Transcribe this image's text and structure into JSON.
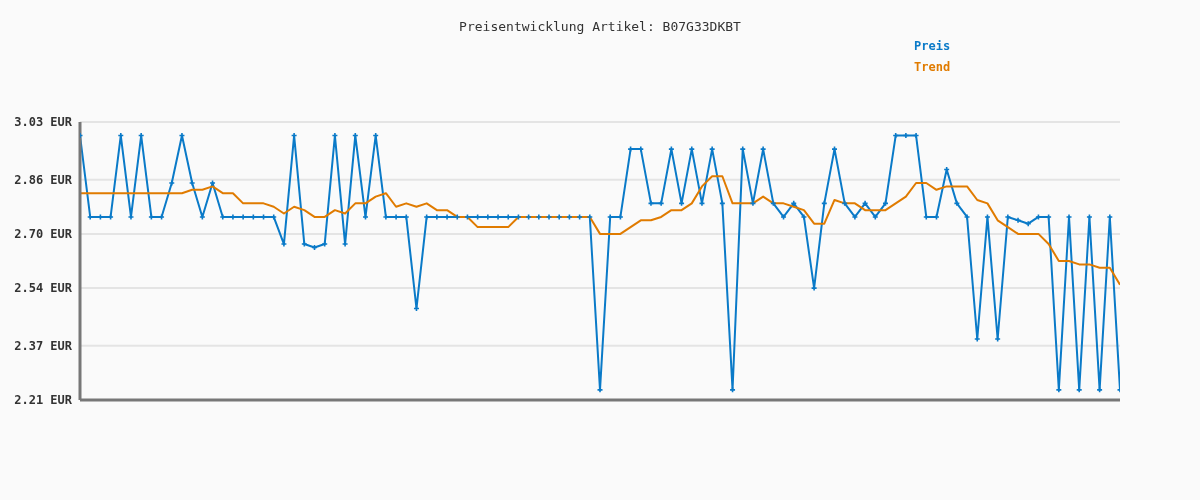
{
  "chart_data": {
    "type": "line",
    "title": "Preisentwicklung Artikel: B07G33DKBT",
    "categories": [
      null,
      null,
      null,
      null,
      null,
      null,
      null,
      null,
      null,
      null,
      null,
      null,
      null,
      null,
      null,
      null,
      null,
      null,
      null,
      null,
      null,
      null,
      null,
      null,
      null,
      null,
      null,
      null,
      null,
      null,
      null,
      null,
      null,
      null,
      null,
      null,
      null,
      null,
      null,
      null,
      null,
      null,
      null,
      null,
      null,
      null,
      null,
      null,
      null,
      null,
      null,
      null,
      null,
      null,
      null,
      null,
      null,
      null,
      null,
      null,
      null,
      null,
      null,
      null,
      null,
      null,
      null,
      null,
      null,
      null,
      null,
      null,
      null,
      null,
      null,
      null,
      null,
      null,
      null,
      null,
      null,
      null,
      null,
      null,
      null,
      null,
      null,
      null,
      null,
      null,
      null,
      null,
      null,
      null,
      null,
      null,
      null,
      null,
      null,
      null,
      null,
      null,
      null
    ],
    "series": [
      {
        "name": "Preis",
        "color": "#0a7ac8",
        "marker": "cross",
        "values": [
          2.99,
          2.75,
          2.75,
          2.75,
          2.99,
          2.75,
          2.99,
          2.75,
          2.75,
          2.85,
          2.99,
          2.85,
          2.75,
          2.85,
          2.75,
          2.75,
          2.75,
          2.75,
          2.75,
          2.75,
          2.67,
          2.99,
          2.67,
          2.66,
          2.67,
          2.99,
          2.67,
          2.99,
          2.75,
          2.99,
          2.75,
          2.75,
          2.75,
          2.48,
          2.75,
          2.75,
          2.75,
          2.75,
          2.75,
          2.75,
          2.75,
          2.75,
          2.75,
          2.75,
          2.75,
          2.75,
          2.75,
          2.75,
          2.75,
          2.75,
          2.75,
          2.24,
          2.75,
          2.75,
          2.95,
          2.95,
          2.79,
          2.79,
          2.95,
          2.79,
          2.95,
          2.79,
          2.95,
          2.79,
          2.24,
          2.95,
          2.79,
          2.95,
          2.79,
          2.75,
          2.79,
          2.75,
          2.54,
          2.79,
          2.95,
          2.79,
          2.75,
          2.79,
          2.75,
          2.79,
          2.99,
          2.99,
          2.99,
          2.75,
          2.75,
          2.89,
          2.79,
          2.75,
          2.39,
          2.75,
          2.39,
          2.75,
          2.74,
          2.73,
          2.75,
          2.75,
          2.24,
          2.75,
          2.24,
          2.75,
          2.24,
          2.75,
          2.24
        ]
      },
      {
        "name": "Trend",
        "color": "#e07b00",
        "marker": "none",
        "values": [
          2.82,
          2.82,
          2.82,
          2.82,
          2.82,
          2.82,
          2.82,
          2.82,
          2.82,
          2.82,
          2.82,
          2.83,
          2.83,
          2.84,
          2.82,
          2.82,
          2.79,
          2.79,
          2.79,
          2.78,
          2.76,
          2.78,
          2.77,
          2.75,
          2.75,
          2.77,
          2.76,
          2.79,
          2.79,
          2.81,
          2.82,
          2.78,
          2.79,
          2.78,
          2.79,
          2.77,
          2.77,
          2.75,
          2.75,
          2.72,
          2.72,
          2.72,
          2.72,
          2.75,
          2.75,
          2.75,
          2.75,
          2.75,
          2.75,
          2.75,
          2.75,
          2.7,
          2.7,
          2.7,
          2.72,
          2.74,
          2.74,
          2.75,
          2.77,
          2.77,
          2.79,
          2.84,
          2.87,
          2.87,
          2.79,
          2.79,
          2.79,
          2.81,
          2.79,
          2.79,
          2.78,
          2.77,
          2.73,
          2.73,
          2.8,
          2.79,
          2.79,
          2.77,
          2.77,
          2.77,
          2.79,
          2.81,
          2.85,
          2.85,
          2.83,
          2.84,
          2.84,
          2.84,
          2.8,
          2.79,
          2.74,
          2.72,
          2.7,
          2.7,
          2.7,
          2.67,
          2.62,
          2.62,
          2.61,
          2.61,
          2.6,
          2.6,
          2.55
        ]
      }
    ],
    "ylim": [
      2.21,
      3.03
    ],
    "yticks": [
      {
        "value": 2.21,
        "label": "2.21 EUR"
      },
      {
        "value": 2.37,
        "label": "2.37 EUR"
      },
      {
        "value": 2.54,
        "label": "2.54 EUR"
      },
      {
        "value": 2.7,
        "label": "2.70 EUR"
      },
      {
        "value": 2.86,
        "label": "2.86 EUR"
      },
      {
        "value": 3.03,
        "label": "3.03 EUR"
      }
    ],
    "grid": "y",
    "legend": "top right",
    "tick_labels": "y",
    "line_style": "solid"
  }
}
